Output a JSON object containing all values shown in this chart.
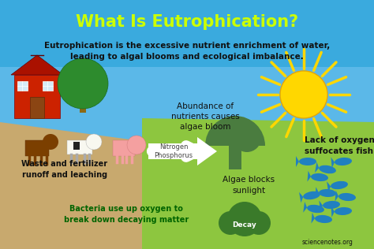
{
  "title": "What Is Eutrophication?",
  "subtitle": "Eutrophication is the excessive nutrient enrichment of water,\nleading to algal blooms and ecological imbalance.",
  "title_color": "#CCFF00",
  "subtitle_color": "#111111",
  "bg_sky_color": "#5BB8E8",
  "bg_brown_color": "#C8A96E",
  "bg_green_color": "#8DC63F",
  "labels": {
    "waste": "Waste and fertilizer\nrunoff and leaching",
    "nitrogen": "Nitrogen\nPhosphorus",
    "abundance": "Abundance of\nnutrients causes\nalgae bloom",
    "lack_oxygen": "Lack of oxygen\nsuffocates fish",
    "algae_blocks": "Algae blocks\nsunlight",
    "bacteria": "Bacteria use up oxygen to\nbreak down decaying matter",
    "decay": "Decay",
    "source": "sciencenotes.org"
  },
  "label_colors": {
    "waste": "#111111",
    "nitrogen": "#444444",
    "abundance": "#111111",
    "lack_oxygen": "#111111",
    "algae_blocks": "#111111",
    "bacteria": "#006400",
    "decay": "#ffffff",
    "source": "#111111"
  },
  "sun_color": "#FFD700",
  "sun_ray_color": "#FFD700",
  "algae_color": "#4a7c3f",
  "fish_color": "#2080C0",
  "barn_color": "#CC2200",
  "barn_roof_color": "#AA1100"
}
